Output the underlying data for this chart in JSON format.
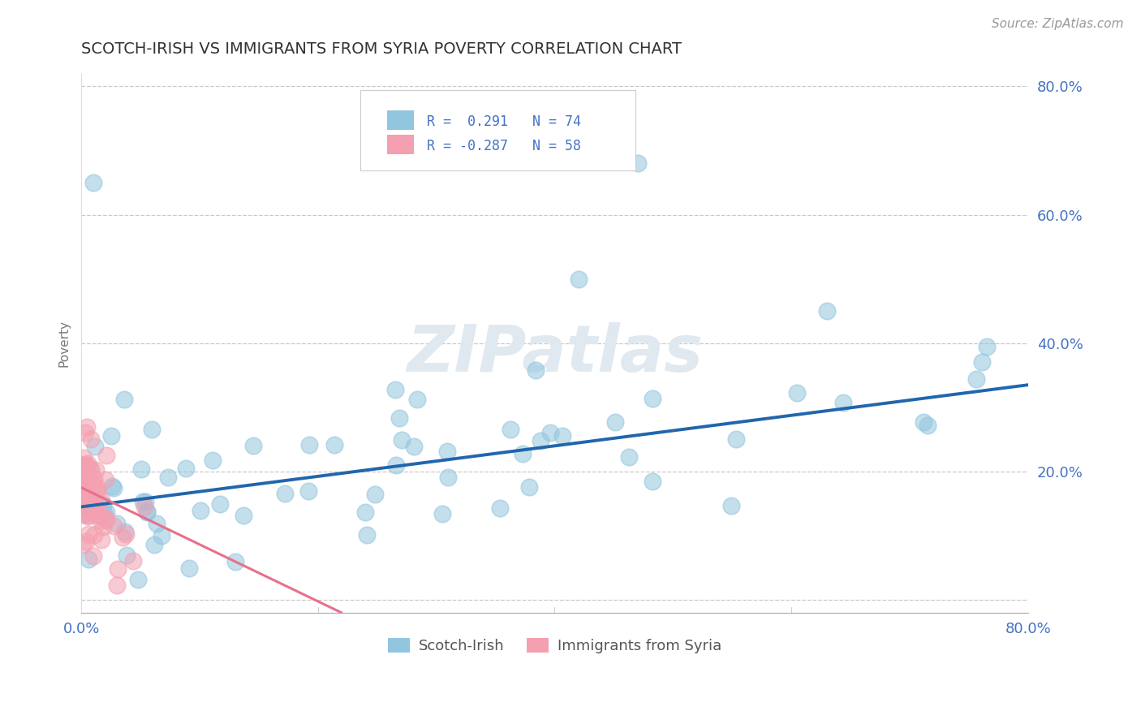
{
  "title": "SCOTCH-IRISH VS IMMIGRANTS FROM SYRIA POVERTY CORRELATION CHART",
  "source": "Source: ZipAtlas.com",
  "ylabel": "Poverty",
  "xlim": [
    0.0,
    0.8
  ],
  "ylim": [
    -0.02,
    0.82
  ],
  "scotch_irish_color": "#92c5de",
  "syria_color": "#f4a0b0",
  "scotch_irish_trend_color": "#2166ac",
  "syria_trend_color": "#e8708a",
  "background_color": "#ffffff",
  "grid_color": "#cccccc",
  "title_color": "#333333",
  "axis_label_color": "#4472c4",
  "ytick_positions": [
    0.0,
    0.2,
    0.4,
    0.6,
    0.8
  ],
  "ytick_labels": [
    "",
    "20.0%",
    "40.0%",
    "60.0%",
    "80.0%"
  ],
  "si_trend_x": [
    0.0,
    0.8
  ],
  "si_trend_y": [
    0.145,
    0.335
  ],
  "sy_trend_x": [
    0.0,
    0.22
  ],
  "sy_trend_y": [
    0.175,
    -0.02
  ],
  "watermark_text": "ZIPatlas",
  "watermark_color": "#e0e8f0",
  "legend_r1": "R =  0.291",
  "legend_n1": "N = 74",
  "legend_r2": "R = -0.287",
  "legend_n2": "N = 58",
  "bottom_legend_1": "Scotch-Irish",
  "bottom_legend_2": "Immigrants from Syria"
}
